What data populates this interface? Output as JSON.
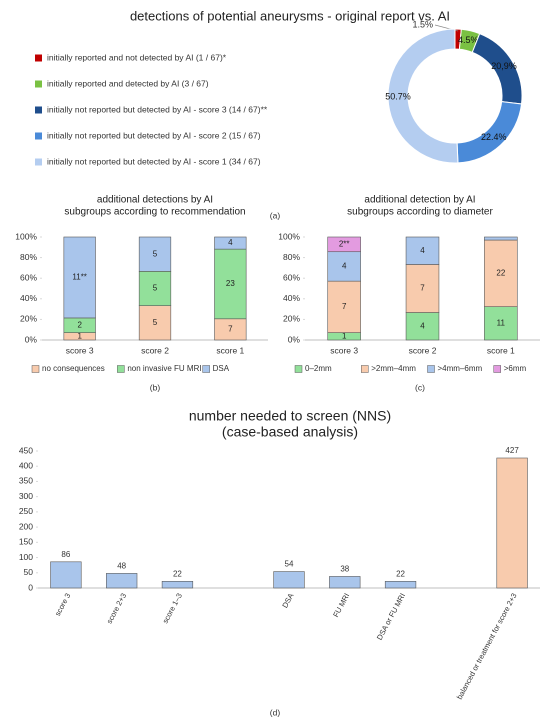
{
  "chart_data": [
    {
      "type": "pie",
      "donut": true,
      "title": "detections of potential aneurysms - original report vs. AI",
      "caption": "(a)",
      "categories": [
        "initially reported and not detected by AI (1 / 67)*",
        "initially reported and detected by AI (3 / 67)",
        "initially not reported but detected by AI - score 3 (14 / 67)**",
        "initially not reported but detected by AI - score 2 (15 / 67)",
        "initially not reported but detected by AI - score 1 (34 / 67)"
      ],
      "values": [
        1.5,
        4.5,
        20.9,
        22.4,
        50.7
      ],
      "value_labels": [
        "1.5%",
        "4.5%",
        "20,9%",
        "22.4%",
        "50.7%"
      ],
      "colors": [
        "#c00000",
        "#7ac143",
        "#1f4e8c",
        "#4a8ad8",
        "#b4cdf0"
      ],
      "legend": "left"
    },
    {
      "type": "bar",
      "stacked": true,
      "normalize": true,
      "title": "additional detections by  AI",
      "subtitle": "subgroups according to recommendation",
      "caption": "(b)",
      "categories": [
        "score 3",
        "score 2",
        "score 1"
      ],
      "series": [
        {
          "name": "no consequences",
          "color": "#f8cbad",
          "values": [
            1,
            5,
            7
          ]
        },
        {
          "name": "non invasive FU MRI",
          "color": "#92e09a",
          "values": [
            2,
            5,
            23
          ]
        },
        {
          "name": "DSA",
          "color": "#a9c5eb",
          "values": [
            11,
            5,
            4
          ],
          "value_labels": [
            "11**",
            "5",
            "4"
          ]
        }
      ],
      "ylim": [
        0,
        100
      ],
      "yticks": [
        {
          "value": 0,
          "label": "0%"
        },
        {
          "value": 20,
          "label": "20%"
        },
        {
          "value": 40,
          "label": "40%"
        },
        {
          "value": 60,
          "label": "60%"
        },
        {
          "value": 80,
          "label": "80%"
        },
        {
          "value": 100,
          "label": "100%"
        }
      ],
      "grid": false,
      "legend": "bottom"
    },
    {
      "type": "bar",
      "stacked": true,
      "normalize": true,
      "title": "additional detection by AI",
      "subtitle": "subgroups according to diameter",
      "caption": "(c)",
      "categories": [
        "score 3",
        "score 2",
        "score 1"
      ],
      "series": [
        {
          "name": "0–2mm",
          "color": "#92e09a",
          "values": [
            1,
            4,
            11
          ]
        },
        {
          "name": ">2mm–4mm",
          "color": "#f8cbad",
          "values": [
            7,
            7,
            22
          ]
        },
        {
          "name": ">4mm–6mm",
          "color": "#a9c5eb",
          "values": [
            4,
            4,
            1
          ],
          "value_labels": [
            "4",
            "4",
            null
          ]
        },
        {
          "name": ">6mm",
          "color": "#e39be0",
          "values": [
            2,
            0,
            0
          ],
          "value_labels": [
            "2**",
            null,
            null
          ]
        }
      ],
      "ylim": [
        0,
        100
      ],
      "yticks": [
        {
          "value": 0,
          "label": "0%"
        },
        {
          "value": 20,
          "label": "20%"
        },
        {
          "value": 40,
          "label": "40%"
        },
        {
          "value": 60,
          "label": "60%"
        },
        {
          "value": 80,
          "label": "80%"
        },
        {
          "value": 100,
          "label": "100%"
        }
      ],
      "grid": false,
      "legend": "bottom"
    },
    {
      "type": "bar",
      "title": "number needed to screen (NNS)",
      "subtitle": "(case-based analysis)",
      "caption": "(d)",
      "categories": [
        "score 3",
        "score 2+3",
        "score 1–3",
        null,
        "DSA",
        "FU MRI",
        "DSA or FU MRI",
        null,
        "balanced or treatment for score 2+3"
      ],
      "values": [
        86,
        48,
        22,
        null,
        54,
        38,
        22,
        null,
        427
      ],
      "colors": [
        "#a9c5eb",
        "#a9c5eb",
        "#a9c5eb",
        null,
        "#a9c5eb",
        "#a9c5eb",
        "#a9c5eb",
        null,
        "#f8cbad"
      ],
      "ylim": [
        0,
        450
      ],
      "yticks": [
        0,
        50,
        100,
        150,
        200,
        250,
        300,
        350,
        400,
        450
      ],
      "grid": false,
      "rotate_labels": true
    }
  ]
}
